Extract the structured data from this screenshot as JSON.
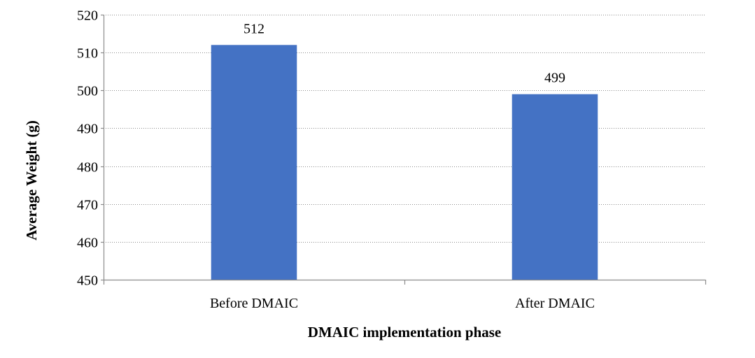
{
  "chart_data": {
    "type": "bar",
    "categories": [
      "Before DMAIC",
      "After DMAIC"
    ],
    "values": [
      512,
      499
    ],
    "data_labels": [
      "512",
      "499"
    ],
    "title": "",
    "xlabel": "DMAIC implementation phase",
    "ylabel": "Average Weight (g)",
    "ylim": [
      450,
      520
    ],
    "yticks": [
      450,
      460,
      470,
      480,
      490,
      500,
      510,
      520
    ],
    "ytick_labels": [
      "450",
      "460",
      "470",
      "480",
      "490",
      "500",
      "510",
      "520"
    ],
    "grid": true,
    "legend": "none",
    "colors": {
      "bar": "#4472C4",
      "grid": "#8c8c8c",
      "axis": "#8c8c8c",
      "text": "#000000"
    }
  }
}
